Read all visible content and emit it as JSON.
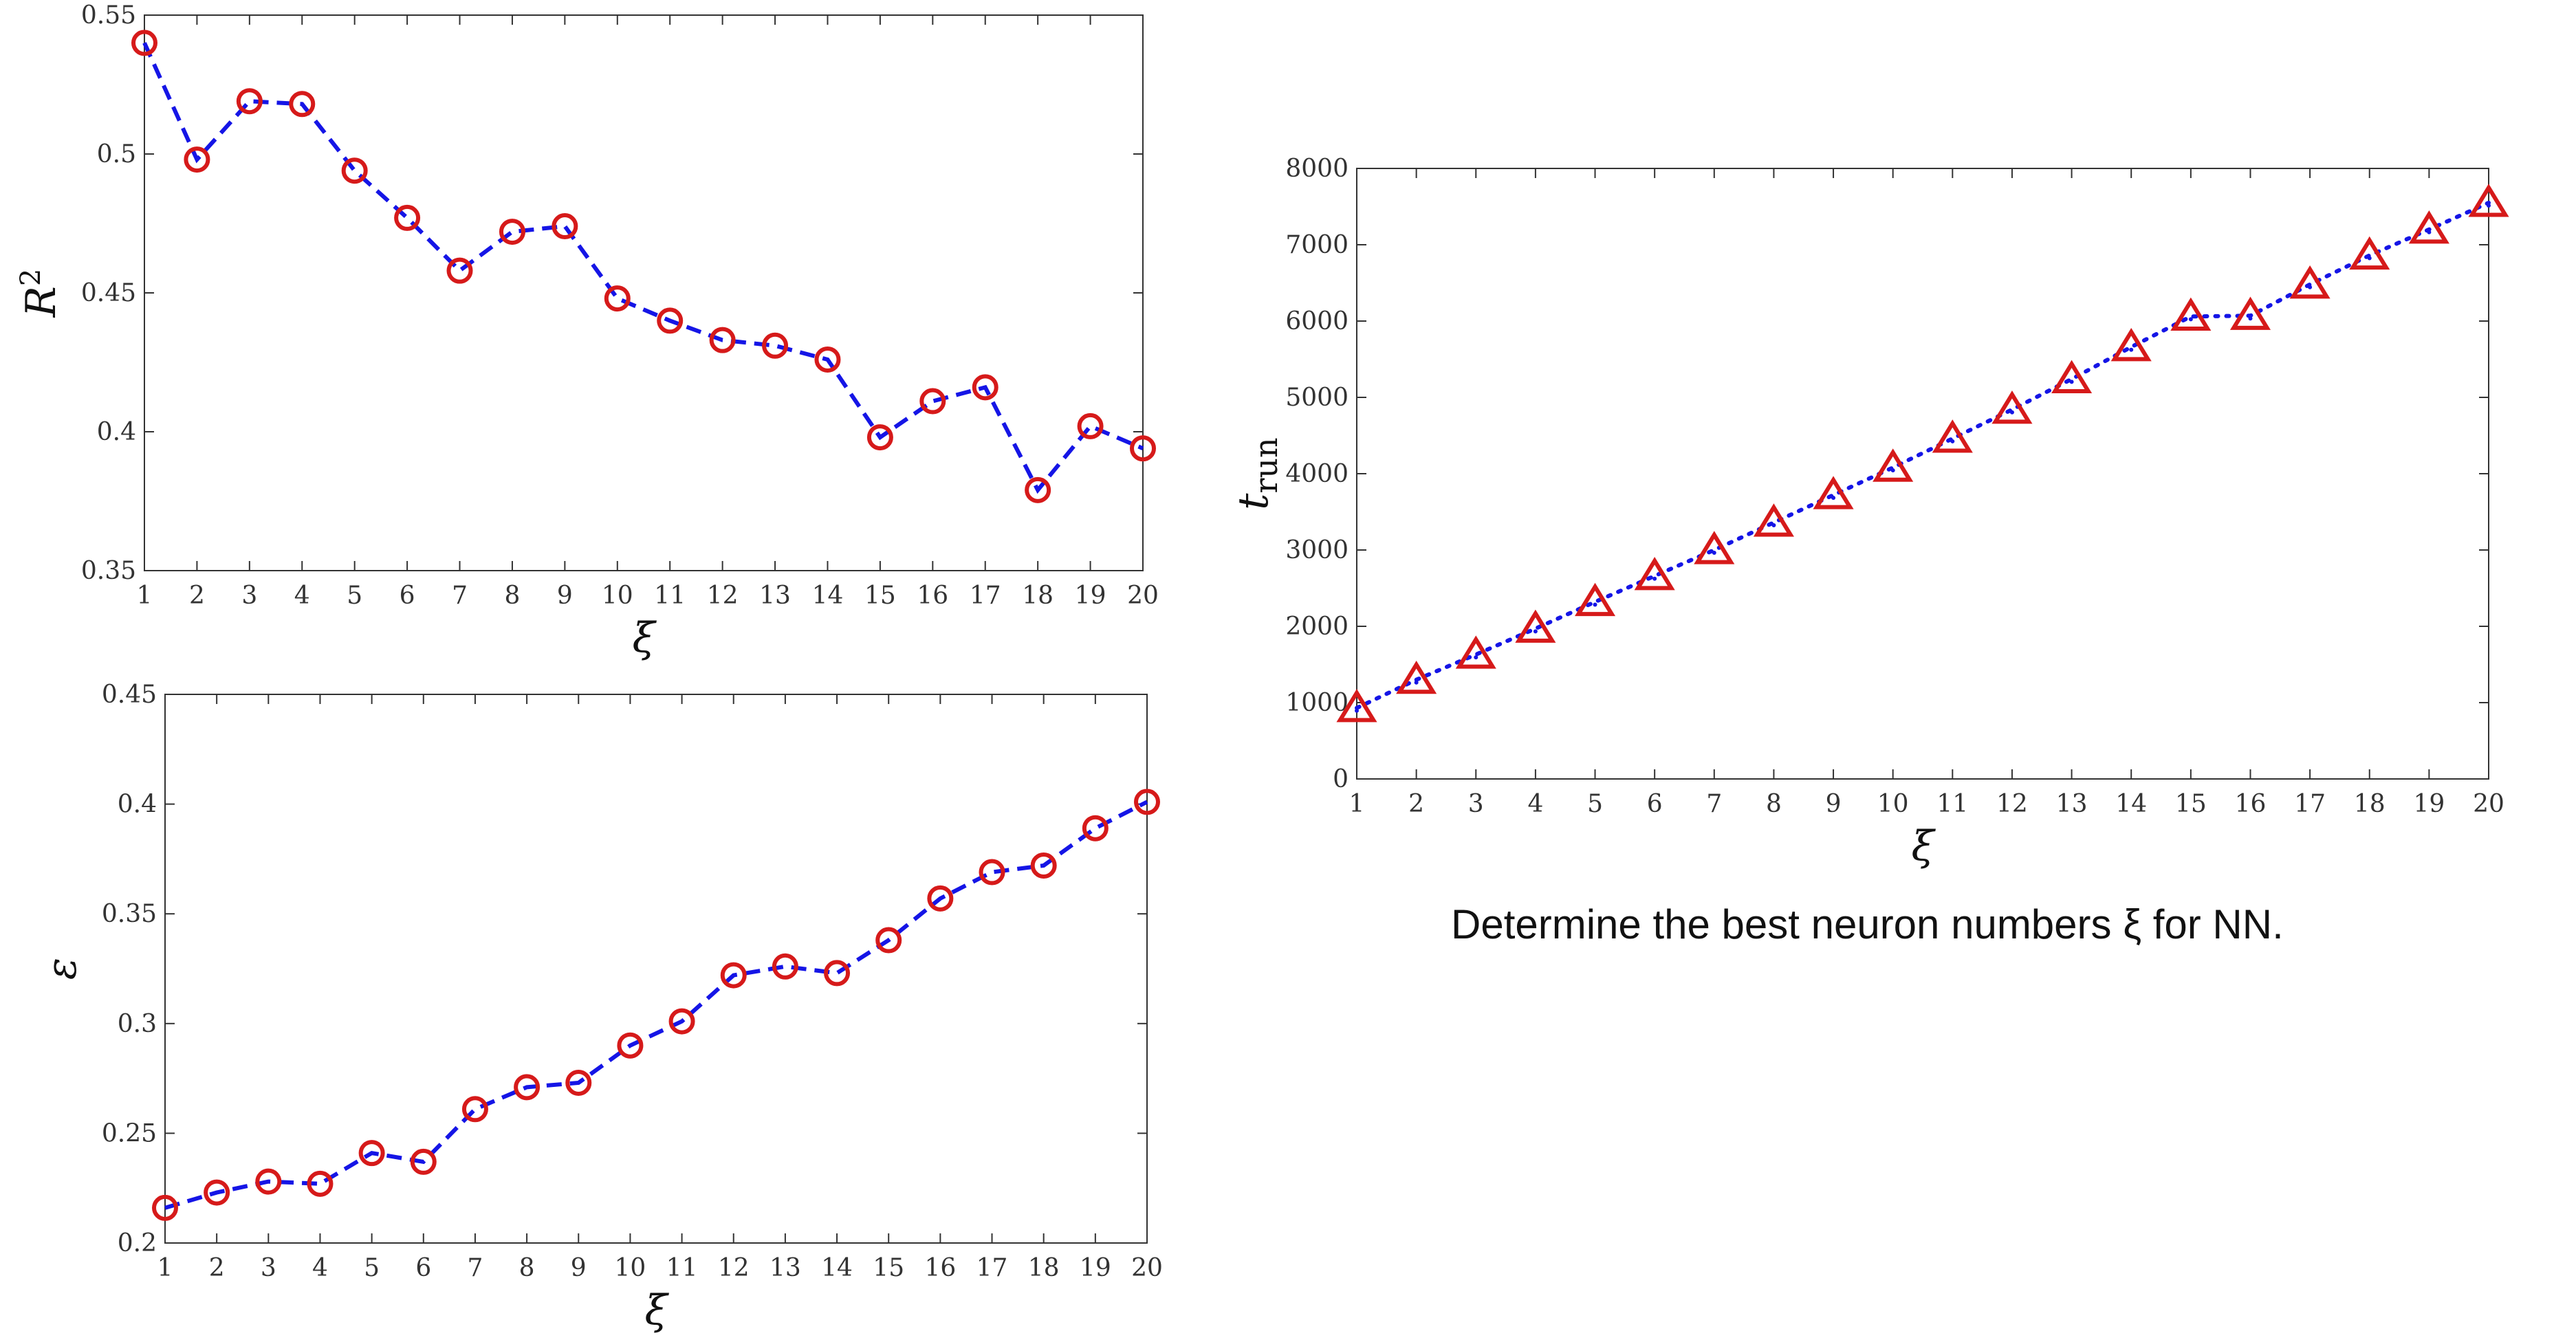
{
  "caption": "Determine the best neuron numbers ξ for NN.",
  "colors": {
    "line": "#1515e6",
    "marker": "#d61a1a",
    "axis": "#333333",
    "background": "#ffffff"
  },
  "chart_data": [
    {
      "id": "r2",
      "type": "line",
      "title": "",
      "xlabel": "ξ",
      "ylabel": "R²",
      "x": [
        1,
        2,
        3,
        4,
        5,
        6,
        7,
        8,
        9,
        10,
        11,
        12,
        13,
        14,
        15,
        16,
        17,
        18,
        19,
        20
      ],
      "xlim": [
        1,
        20
      ],
      "ylim": [
        0.35,
        0.55
      ],
      "yticks": [
        "0.35",
        "0.4",
        "0.45",
        "0.5",
        "0.55"
      ],
      "line_style": "dashed",
      "marker": "circle",
      "grid": false,
      "series": [
        {
          "values": [
            0.54,
            0.498,
            0.519,
            0.518,
            0.494,
            0.477,
            0.458,
            0.472,
            0.474,
            0.448,
            0.44,
            0.433,
            0.431,
            0.426,
            0.398,
            0.411,
            0.416,
            0.379,
            0.402,
            0.394
          ]
        }
      ]
    },
    {
      "id": "eps",
      "type": "line",
      "title": "",
      "xlabel": "ξ",
      "ylabel": "ε",
      "x": [
        1,
        2,
        3,
        4,
        5,
        6,
        7,
        8,
        9,
        10,
        11,
        12,
        13,
        14,
        15,
        16,
        17,
        18,
        19,
        20
      ],
      "xlim": [
        1,
        20
      ],
      "ylim": [
        0.2,
        0.45
      ],
      "yticks": [
        "0.2",
        "0.25",
        "0.3",
        "0.35",
        "0.4",
        "0.45"
      ],
      "line_style": "dashed",
      "marker": "circle",
      "grid": false,
      "series": [
        {
          "values": [
            0.216,
            0.223,
            0.228,
            0.227,
            0.241,
            0.237,
            0.261,
            0.271,
            0.273,
            0.29,
            0.301,
            0.322,
            0.326,
            0.323,
            0.338,
            0.357,
            0.369,
            0.372,
            0.389,
            0.401
          ]
        }
      ]
    },
    {
      "id": "trun",
      "type": "line",
      "title": "",
      "xlabel": "ξ",
      "ylabel": "t_run",
      "x": [
        1,
        2,
        3,
        4,
        5,
        6,
        7,
        8,
        9,
        10,
        11,
        12,
        13,
        14,
        15,
        16,
        17,
        18,
        19,
        20
      ],
      "xlim": [
        1,
        20
      ],
      "ylim": [
        0,
        8000
      ],
      "yticks": [
        "0",
        "1000",
        "2000",
        "3000",
        "4000",
        "5000",
        "6000",
        "7000",
        "8000"
      ],
      "line_style": "dotted",
      "marker": "triangle",
      "grid": false,
      "series": [
        {
          "values": [
            930,
            1300,
            1630,
            1970,
            2320,
            2660,
            3000,
            3360,
            3720,
            4080,
            4460,
            4840,
            5240,
            5660,
            6060,
            6070,
            6480,
            6860,
            7200,
            7550
          ]
        }
      ]
    }
  ]
}
